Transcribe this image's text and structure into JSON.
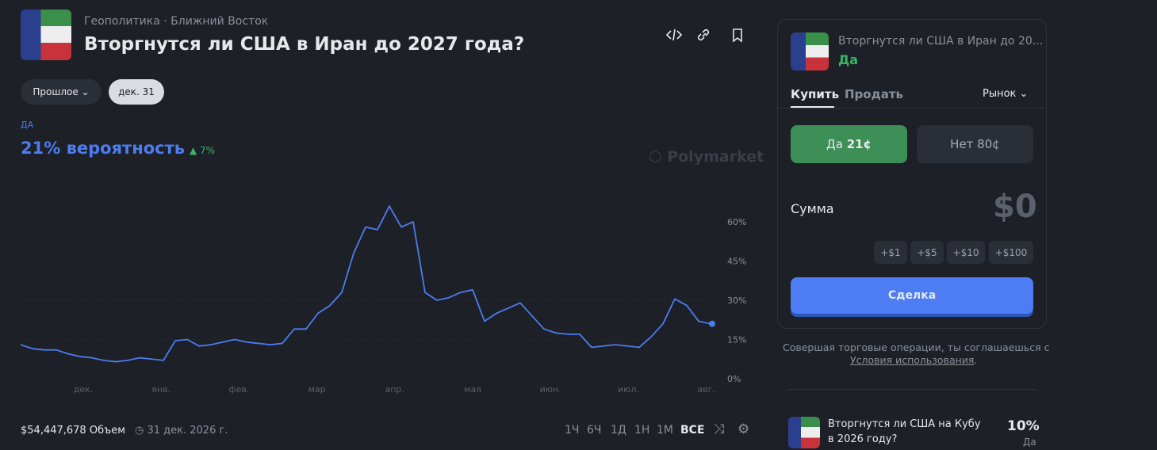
{
  "header": {
    "category": "Геополитика",
    "subcategory": "Ближний Восток",
    "title": "Вторгнутся ли США в Иран до 2027 года?"
  },
  "filters": {
    "past": "Прошлое",
    "date": "дек. 31"
  },
  "outcome": {
    "name": "ДА",
    "probability": "21% вероятность",
    "change": "7%"
  },
  "watermark": "Polymarket",
  "chart_data": {
    "type": "line",
    "color": "#4c7cf0",
    "grid": true,
    "values": [
      13,
      11.5,
      11,
      11,
      9.5,
      8.5,
      8,
      7,
      6.5,
      7,
      8,
      7.5,
      7,
      14.5,
      15,
      12.5,
      13,
      14,
      15,
      14,
      13.5,
      13,
      13.5,
      19,
      19,
      25,
      28,
      33,
      48,
      58,
      57,
      66,
      58,
      60,
      33,
      30,
      31,
      33,
      34,
      22,
      25,
      27,
      29,
      24,
      19,
      17.5,
      17,
      17,
      12,
      12.5,
      13,
      12.5,
      12,
      16,
      21,
      30.5,
      28,
      22,
      21
    ],
    "x_tick_labels": [
      "дек.",
      "янв.",
      "фев.",
      "мар",
      "апр.",
      "мая",
      "июн.",
      "июл.",
      "авг."
    ],
    "ylim": [
      0,
      70
    ],
    "yticks": [
      {
        "value": 0,
        "label": "0%"
      },
      {
        "value": 15,
        "label": "15%"
      },
      {
        "value": 30,
        "label": "30%"
      },
      {
        "value": 45,
        "label": "45%"
      },
      {
        "value": 60,
        "label": "60%"
      }
    ]
  },
  "footer": {
    "volume": "$54,447,678 Объем",
    "end_date": "31 дек. 2026 г.",
    "ranges": [
      "1Ч",
      "6Ч",
      "1Д",
      "1Н",
      "1М",
      "ВСЕ"
    ]
  },
  "trade_panel": {
    "market": "Вторгнутся ли США в Иран до 20...",
    "outcome": "Да",
    "tabs": [
      "Купить",
      "Продать"
    ],
    "order_type": "Рынок",
    "yes_button": "Да",
    "yes_price": "21¢",
    "no_button": "Нет 80¢",
    "amount_label": "Сумма",
    "amount": "$0",
    "quick_add": [
      "+$1",
      "+$5",
      "+$10",
      "+$100"
    ],
    "submit": "Сделка"
  },
  "terms": {
    "text": "Совершая торговые операции, ты соглашаешься с",
    "link": "Условия использования",
    "period": "."
  },
  "related": {
    "title": "Вторгнутся ли США на Кубу в 2026 году?",
    "probability": "10%",
    "outcome": "Да"
  }
}
